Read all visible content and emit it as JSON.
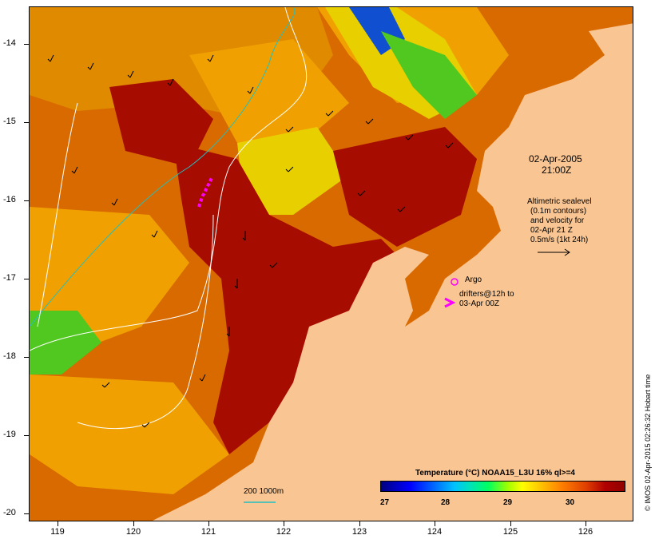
{
  "map": {
    "lat_labels": [
      "-14",
      "-15",
      "-16",
      "-17",
      "-18",
      "-19",
      "-20"
    ],
    "lon_labels": [
      "119",
      "120",
      "121",
      "122",
      "123",
      "124",
      "125",
      "126"
    ],
    "colors": {
      "land": "#f9c592",
      "sst_hot": "#a60c00",
      "sst_warm": "#d86a00",
      "sst_mid": "#f0a000",
      "sst_cool": "#e8d000",
      "sst_green": "#50c820",
      "sst_blue": "#1050d0",
      "contour": "#20c0c0",
      "drifter": "#ff00ff"
    }
  },
  "annotations": {
    "date": "02-Apr-2005",
    "time": "21:00Z",
    "altimetry_lines": [
      "Altimetric sealevel",
      "(0.1m contours)",
      "and velocity for",
      "02-Apr 21 Z",
      "0.5m/s (1kt 24h)"
    ],
    "argo_label": "Argo",
    "drifters_lines": [
      "drifters@12h to",
      "03-Apr 00Z"
    ],
    "depth_label": "200  1000m"
  },
  "legend": {
    "title": "Temperature (°C) NOAA15_L3U 16% ql>=4",
    "ticks": [
      "27",
      "28",
      "29",
      "30"
    ]
  },
  "credit": "© IMOS 02-Apr-2015 02:26:32 Hobart time"
}
